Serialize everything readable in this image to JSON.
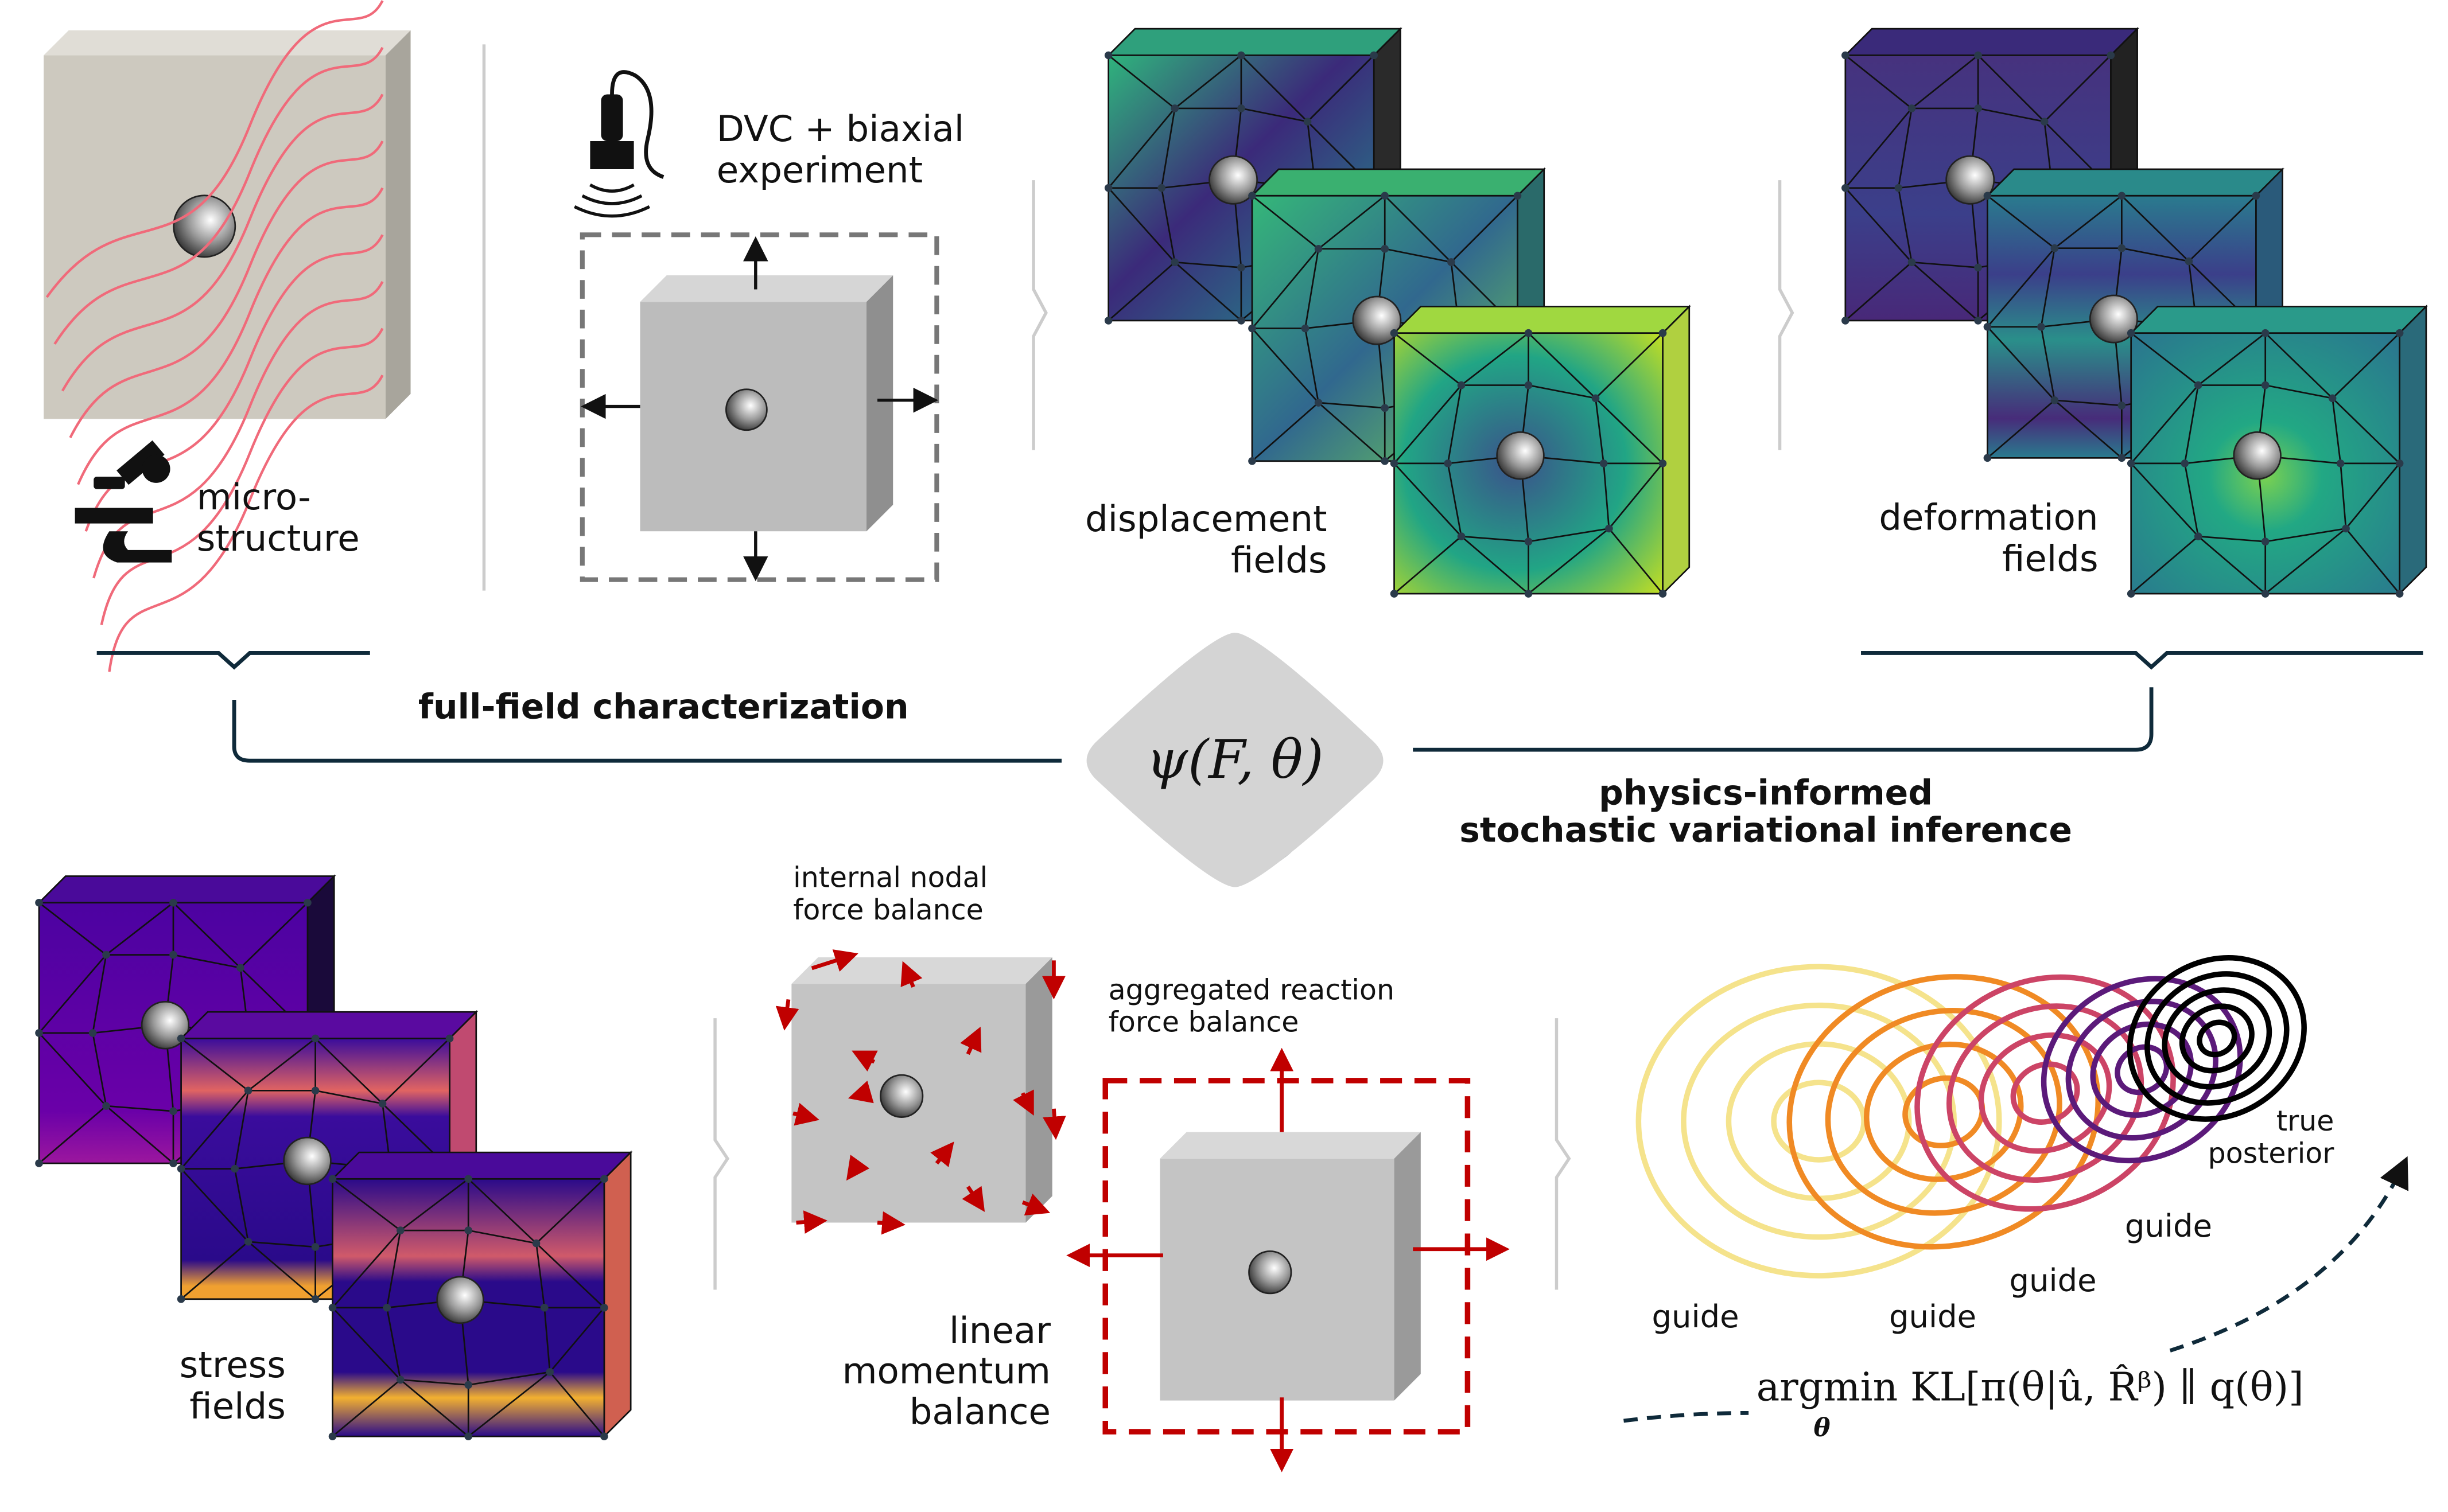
{
  "top": {
    "microstructure_label": [
      "micro-",
      "structure"
    ],
    "experiment_label": [
      "DVC + biaxial",
      "experiment"
    ],
    "displacement_label": [
      "displacement",
      "fields"
    ],
    "deformation_label": [
      "deformation",
      "fields"
    ],
    "full_field_label": "full-field characterization"
  },
  "center": {
    "psi_formula": "ψ(F, θ)",
    "pisvi_label": [
      "physics-informed",
      "stochastic variational inference"
    ]
  },
  "bottom": {
    "stress_label": [
      "stress",
      "fields"
    ],
    "internal_label": [
      "internal nodal",
      "force balance"
    ],
    "aggregated_label": [
      "aggregated reaction",
      "force balance"
    ],
    "momentum_label": [
      "linear",
      "momentum",
      "balance"
    ],
    "true_posterior_label": [
      "true",
      "posterior"
    ],
    "guide_labels": [
      "guide",
      "guide",
      "guide",
      "guide"
    ],
    "objective_formula": "argmin KL[π(θ|û, R̂ᵝ) ∥ q(θ)]",
    "objective_subscript": "θ"
  },
  "colors": {
    "guide_colors": [
      "#f5e38c",
      "#f08a24",
      "#cc4466",
      "#5b1a7a",
      "#000000"
    ],
    "force_arrow": "#c00000",
    "bracket": "#0f2a3a",
    "streamline": "#f06a7a"
  }
}
